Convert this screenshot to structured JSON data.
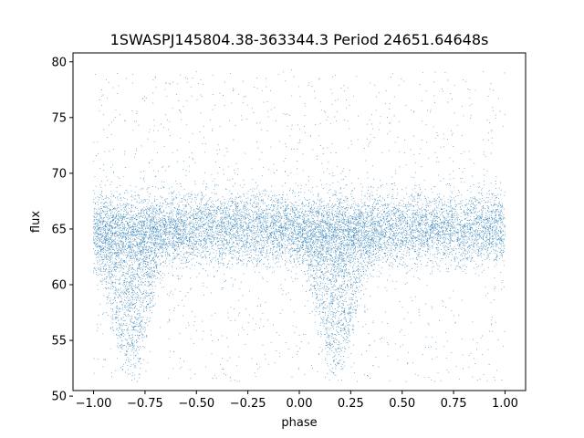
{
  "chart_data": {
    "type": "scatter",
    "title": "1SWASPJ145804.38-363344.3 Period 24651.64648s",
    "xlabel": "phase",
    "ylabel": "flux",
    "xlim": [
      -1.1,
      1.1
    ],
    "ylim": [
      50.5,
      80.8
    ],
    "xticks": [
      -1.0,
      -0.75,
      -0.5,
      -0.25,
      0.0,
      0.25,
      0.5,
      0.75,
      1.0
    ],
    "xtick_labels": [
      "−1.00",
      "−0.75",
      "−0.50",
      "−0.25",
      "0.00",
      "0.25",
      "0.50",
      "0.75",
      "1.00"
    ],
    "yticks": [
      50,
      55,
      60,
      65,
      70,
      75,
      80
    ],
    "ytick_labels": [
      "50",
      "55",
      "60",
      "65",
      "70",
      "75",
      "80"
    ],
    "grid": false,
    "series": [
      {
        "color": "#1f77b4",
        "marker_size_pt": 0.5,
        "phase_range": [
          -1.0,
          1.0
        ],
        "flux_range": [
          51.3,
          79.3
        ],
        "baseline_flux": 65.0,
        "dense_band": [
          61.5,
          68.5
        ],
        "minima": [
          {
            "phase": -0.82,
            "flux": 52.5
          },
          {
            "phase": 0.18,
            "flux": 52.5
          }
        ]
      }
    ]
  }
}
